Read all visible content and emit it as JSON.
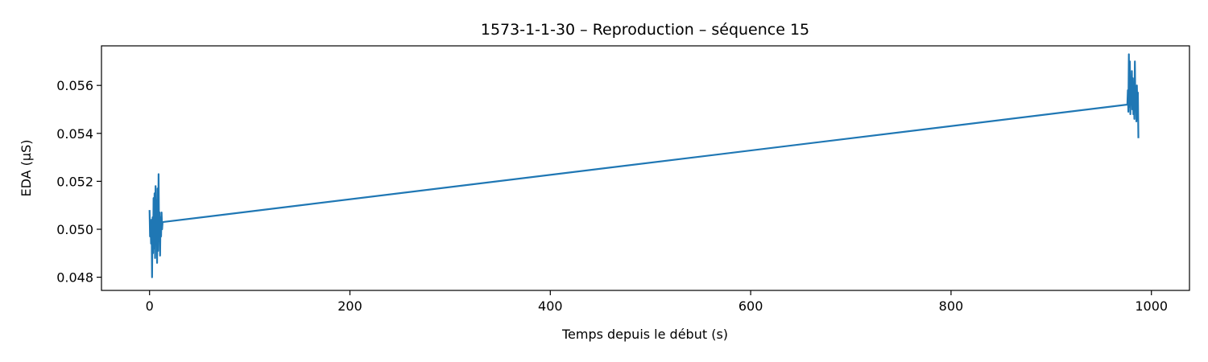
{
  "chart_data": {
    "type": "line",
    "title": "1573-1-1-30 – Reproduction – séquence 15",
    "xlabel": "Temps depuis le début (s)",
    "ylabel": "EDA (µS)",
    "xlim": [
      -48,
      1038
    ],
    "ylim": [
      0.04745,
      0.05765
    ],
    "xticks": [
      0,
      200,
      400,
      600,
      800,
      1000
    ],
    "xtick_labels": [
      "0",
      "200",
      "400",
      "600",
      "800",
      "1000"
    ],
    "yticks": [
      0.048,
      0.05,
      0.052,
      0.054,
      0.056
    ],
    "ytick_labels": [
      "0.048",
      "0.050",
      "0.052",
      "0.054",
      "0.056"
    ],
    "grid": false,
    "series": [
      {
        "color": "#1f77b4",
        "x": [
          0,
          0.5,
          1,
          1.5,
          2,
          2.5,
          3,
          3.5,
          4,
          4.5,
          5,
          5.5,
          6,
          6.5,
          7,
          7.5,
          8,
          8.5,
          9,
          9.5,
          10,
          10.5,
          11,
          11.5,
          12,
          12.5,
          13,
          976,
          976.5,
          977,
          977.5,
          978,
          978.5,
          979,
          979.5,
          980,
          980.5,
          981,
          981.5,
          982,
          982.5,
          983,
          983.5,
          984,
          984.5,
          985,
          985.5,
          986,
          986.5,
          987
        ],
        "y": [
          0.0508,
          0.0497,
          0.0503,
          0.0494,
          0.0504,
          0.048,
          0.0505,
          0.049,
          0.0513,
          0.0492,
          0.0515,
          0.0488,
          0.0518,
          0.0494,
          0.0512,
          0.0486,
          0.0517,
          0.0491,
          0.0523,
          0.0496,
          0.0507,
          0.0489,
          0.0505,
          0.0497,
          0.0507,
          0.05,
          0.0503,
          0.0552,
          0.0558,
          0.0549,
          0.0573,
          0.0551,
          0.057,
          0.0548,
          0.056,
          0.0552,
          0.0566,
          0.055,
          0.0563,
          0.0548,
          0.0555,
          0.0546,
          0.057,
          0.0552,
          0.0559,
          0.0545,
          0.056,
          0.055,
          0.0557,
          0.0538
        ]
      }
    ]
  }
}
